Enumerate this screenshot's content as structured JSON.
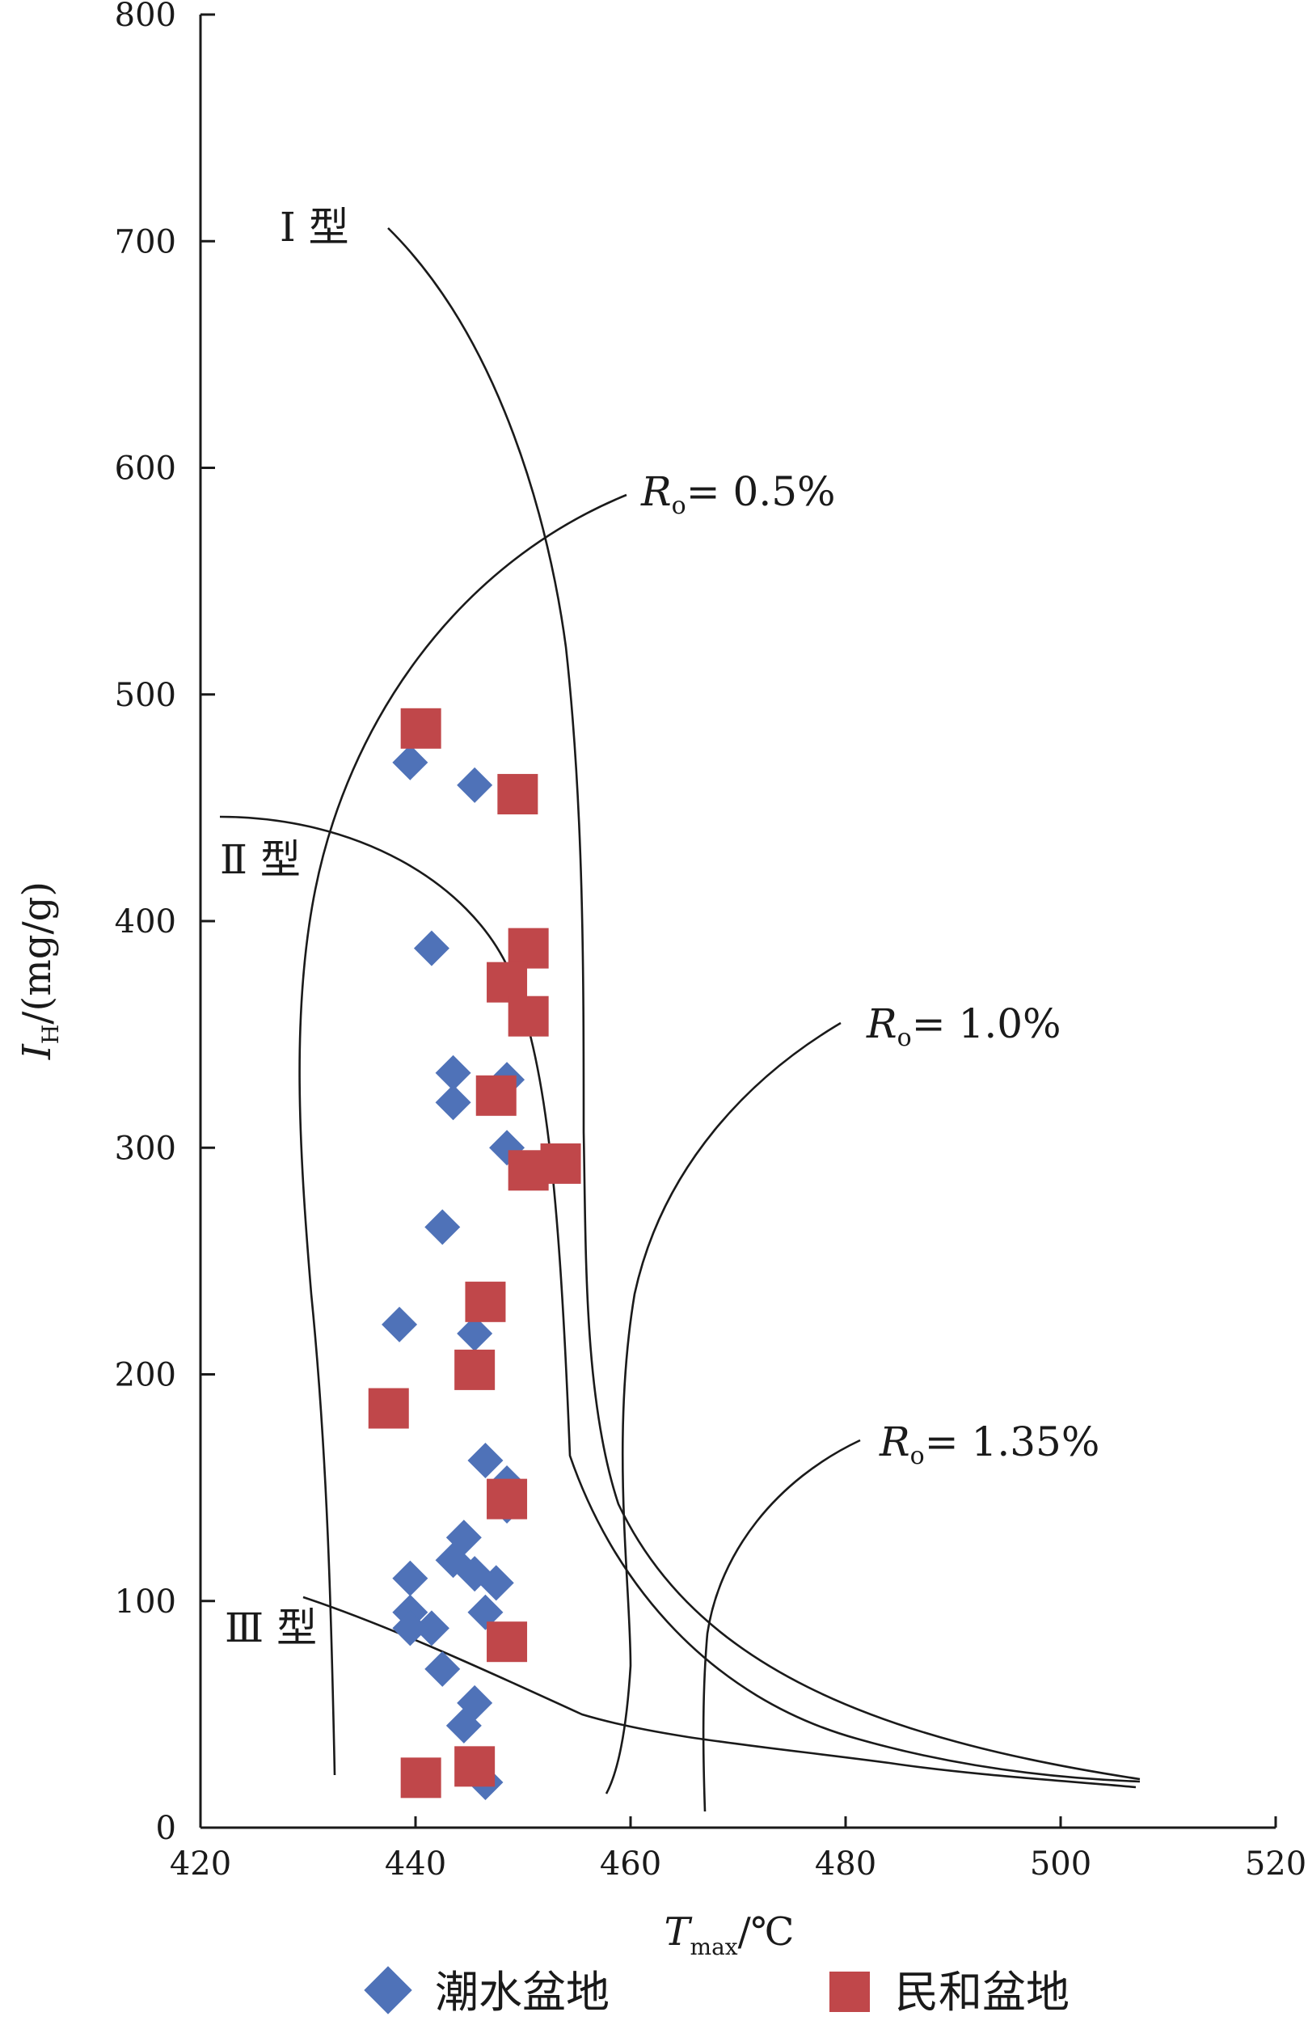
{
  "chart_data": {
    "type": "scatter",
    "xlabel": {
      "main": "T",
      "sub": "max",
      "unit": "/℃"
    },
    "ylabel": {
      "main": "I",
      "sub": "H",
      "unit": "/(mg/g)"
    },
    "xlim": [
      420,
      520
    ],
    "ylim": [
      0,
      800
    ],
    "x_ticks": [
      "420",
      "440",
      "460",
      "480",
      "500",
      "520"
    ],
    "y_ticks": [
      "0",
      "100",
      "200",
      "300",
      "400",
      "500",
      "600",
      "700",
      "800"
    ],
    "region_labels": {
      "type_I": "Ⅰ 型",
      "type_II": "Ⅱ 型",
      "type_III": "Ⅲ 型"
    },
    "ro_labels": [
      {
        "prefix": "R",
        "sub": "o",
        "value": "= 0.5%"
      },
      {
        "prefix": "R",
        "sub": "o",
        "value": "= 1.0%"
      },
      {
        "prefix": "R",
        "sub": "o",
        "value": "= 1.35%"
      }
    ],
    "series": [
      {
        "name": "潮水盆地",
        "color": "#4f72b8",
        "marker": "diamond",
        "points": [
          [
            439.5,
            470
          ],
          [
            445.5,
            460
          ],
          [
            441.5,
            388
          ],
          [
            443.5,
            333
          ],
          [
            443.5,
            320
          ],
          [
            448.5,
            330
          ],
          [
            448.5,
            300
          ],
          [
            442.5,
            265
          ],
          [
            438.5,
            222
          ],
          [
            445.5,
            218
          ],
          [
            446.5,
            162
          ],
          [
            448.5,
            152
          ],
          [
            448.5,
            142
          ],
          [
            444.5,
            128
          ],
          [
            443.5,
            118
          ],
          [
            445.5,
            112
          ],
          [
            447.5,
            108
          ],
          [
            439.5,
            110
          ],
          [
            439.5,
            95
          ],
          [
            441.5,
            88
          ],
          [
            439.5,
            88
          ],
          [
            446.5,
            95
          ],
          [
            442.5,
            70
          ],
          [
            445.5,
            55
          ],
          [
            444.5,
            45
          ],
          [
            446.5,
            20
          ]
        ]
      },
      {
        "name": "民和盆地",
        "color": "#c0474a",
        "marker": "square",
        "points": [
          [
            440.5,
            485
          ],
          [
            449.5,
            456
          ],
          [
            450.5,
            388
          ],
          [
            448.5,
            373
          ],
          [
            450.5,
            358
          ],
          [
            447.5,
            323
          ],
          [
            450.5,
            290
          ],
          [
            453.5,
            293
          ],
          [
            446.5,
            232
          ],
          [
            445.5,
            202
          ],
          [
            437.5,
            185
          ],
          [
            448.5,
            145
          ],
          [
            448.5,
            82
          ],
          [
            445.5,
            27
          ],
          [
            440.5,
            22
          ]
        ]
      }
    ]
  },
  "legend": {
    "items": [
      {
        "label": "潮水盆地",
        "color": "#4f72b8",
        "marker": "diamond"
      },
      {
        "label": "民和盆地",
        "color": "#c0474a",
        "marker": "square"
      }
    ]
  }
}
